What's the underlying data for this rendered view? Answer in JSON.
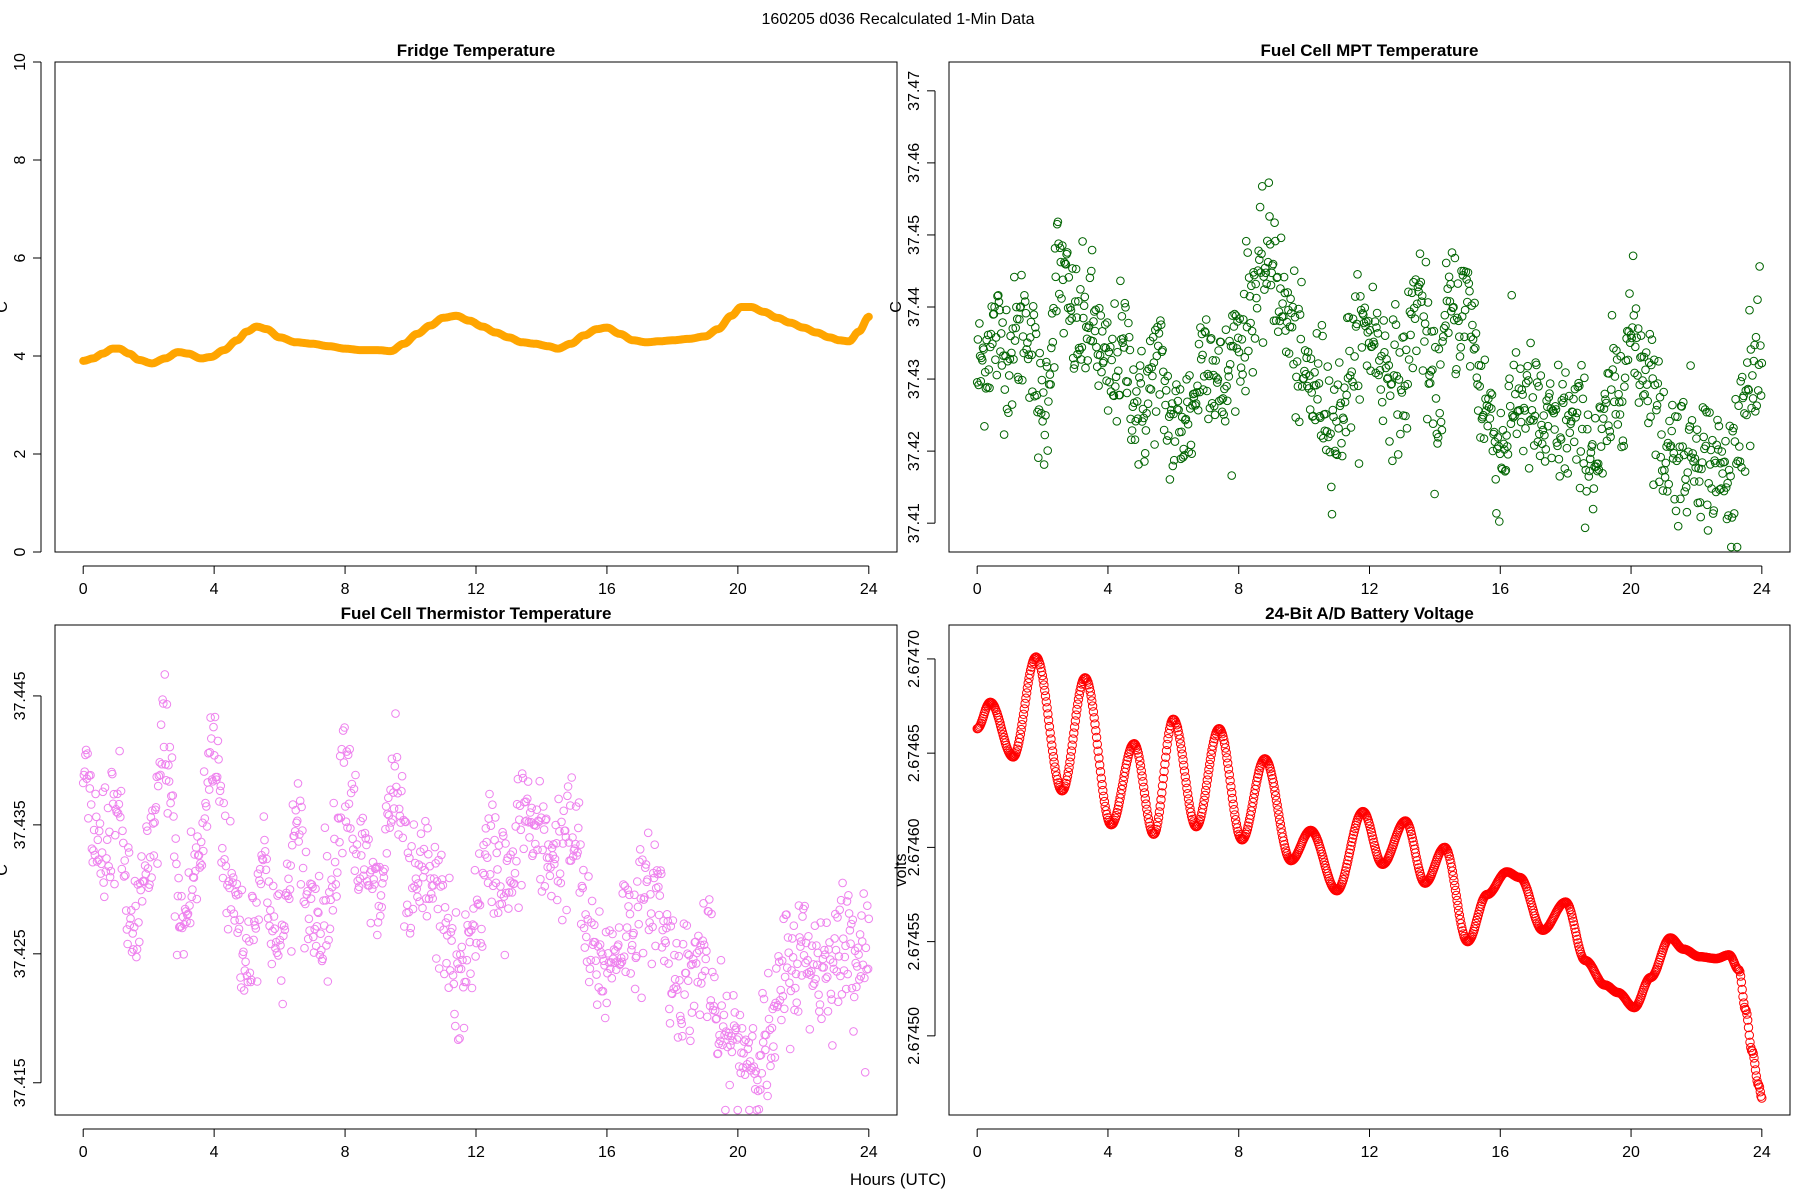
{
  "figure": {
    "suptitle": "160205   d036   Recalculated 1-Min Data",
    "xlabel": "Hours (UTC)"
  },
  "chart_data": [
    {
      "id": "fridge",
      "type": "line",
      "title": "Fridge Temperature",
      "xlabel": "Hours (UTC)",
      "ylabel": "C",
      "xlim": [
        0,
        24
      ],
      "ylim": [
        0,
        10
      ],
      "xticks": [
        0,
        4,
        8,
        12,
        16,
        20,
        24
      ],
      "yticks": [
        0,
        2,
        4,
        6,
        8,
        10
      ],
      "ytick_decimals": 0,
      "color": "#ffa500",
      "marker": "thick-line",
      "series": [
        {
          "name": "Fridge Temperature",
          "x": [
            0,
            0.3,
            0.6,
            0.9,
            1.1,
            1.4,
            1.7,
            2.1,
            2.5,
            2.9,
            3.2,
            3.6,
            3.9,
            4.3,
            4.7,
            5.0,
            5.3,
            5.6,
            6.0,
            6.5,
            7.0,
            7.5,
            8.0,
            8.5,
            9.0,
            9.4,
            9.8,
            10.2,
            10.6,
            11.0,
            11.4,
            11.8,
            12.2,
            12.6,
            13.0,
            13.4,
            13.8,
            14.2,
            14.5,
            14.9,
            15.3,
            15.7,
            16.0,
            16.4,
            16.8,
            17.2,
            17.6,
            18.0,
            18.5,
            19.0,
            19.4,
            19.8,
            20.1,
            20.4,
            20.8,
            21.2,
            21.6,
            22.0,
            22.4,
            22.8,
            23.1,
            23.4,
            23.7,
            24.0
          ],
          "y": [
            3.9,
            3.95,
            4.05,
            4.15,
            4.15,
            4.05,
            3.92,
            3.85,
            3.95,
            4.08,
            4.05,
            3.95,
            3.98,
            4.12,
            4.32,
            4.5,
            4.6,
            4.55,
            4.38,
            4.28,
            4.25,
            4.2,
            4.15,
            4.12,
            4.12,
            4.1,
            4.25,
            4.45,
            4.62,
            4.78,
            4.82,
            4.72,
            4.6,
            4.48,
            4.38,
            4.28,
            4.25,
            4.2,
            4.15,
            4.25,
            4.42,
            4.55,
            4.58,
            4.45,
            4.32,
            4.28,
            4.3,
            4.32,
            4.35,
            4.4,
            4.55,
            4.82,
            5.0,
            5.0,
            4.9,
            4.78,
            4.68,
            4.58,
            4.48,
            4.38,
            4.32,
            4.3,
            4.5,
            4.8
          ]
        }
      ]
    },
    {
      "id": "mpt",
      "type": "scatter",
      "title": "Fuel Cell MPT Temperature",
      "xlabel": "Hours (UTC)",
      "ylabel": "C",
      "xlim": [
        0,
        24
      ],
      "ylim": [
        37.406,
        37.474
      ],
      "xticks": [
        0,
        4,
        8,
        12,
        16,
        20,
        24
      ],
      "yticks": [
        37.41,
        37.42,
        37.43,
        37.44,
        37.45,
        37.46,
        37.47
      ],
      "ytick_decimals": 2,
      "color": "#006400",
      "marker": "open-circle",
      "series": [
        {
          "name": "Fuel Cell MPT Temperature",
          "x": [
            0,
            0.5,
            1.0,
            1.5,
            2.0,
            2.5,
            3.0,
            3.5,
            4.0,
            4.5,
            5.0,
            5.5,
            6.0,
            6.5,
            7.0,
            7.5,
            8.0,
            8.5,
            9.0,
            9.5,
            10.0,
            10.5,
            11.0,
            11.5,
            12.0,
            12.5,
            13.0,
            13.5,
            14.0,
            14.5,
            15.0,
            15.5,
            16.0,
            16.5,
            17.0,
            17.5,
            18.0,
            18.5,
            19.0,
            19.5,
            20.0,
            20.5,
            21.0,
            21.5,
            22.0,
            22.5,
            23.0,
            23.5,
            24.0
          ],
          "y": [
            37.431,
            37.436,
            37.434,
            37.438,
            37.425,
            37.445,
            37.437,
            37.438,
            37.43,
            37.434,
            37.425,
            37.432,
            37.423,
            37.425,
            37.435,
            37.428,
            37.436,
            37.442,
            37.447,
            37.438,
            37.43,
            37.428,
            37.424,
            37.433,
            37.437,
            37.432,
            37.429,
            37.442,
            37.426,
            37.44,
            37.44,
            37.427,
            37.42,
            37.428,
            37.425,
            37.422,
            37.424,
            37.422,
            37.419,
            37.428,
            37.436,
            37.432,
            37.421,
            37.42,
            37.421,
            37.418,
            37.416,
            37.428,
            37.431
          ],
          "spread": 0.0085
        }
      ]
    },
    {
      "id": "thermistor",
      "type": "scatter",
      "title": "Fuel Cell Thermistor Temperature",
      "xlabel": "Hours (UTC)",
      "ylabel": "C",
      "xlim": [
        0,
        24
      ],
      "ylim": [
        37.4125,
        37.4505
      ],
      "xticks": [
        0,
        4,
        8,
        12,
        16,
        20,
        24
      ],
      "yticks": [
        37.415,
        37.425,
        37.435,
        37.445
      ],
      "ytick_decimals": 3,
      "color": "#ee82ee",
      "marker": "open-circle",
      "series": [
        {
          "name": "Fuel Cell Thermistor Temperature",
          "x": [
            0,
            0.5,
            1.0,
            1.5,
            2.0,
            2.5,
            3.0,
            3.5,
            4.0,
            4.5,
            5.0,
            5.5,
            6.0,
            6.5,
            7.0,
            7.5,
            8.0,
            8.5,
            9.0,
            9.5,
            10.0,
            10.5,
            11.0,
            11.5,
            12.0,
            12.5,
            13.0,
            13.5,
            14.0,
            14.5,
            15.0,
            15.5,
            16.0,
            16.5,
            17.0,
            17.5,
            18.0,
            18.5,
            19.0,
            19.5,
            20.0,
            20.5,
            21.0,
            21.5,
            22.0,
            22.5,
            23.0,
            23.5,
            24.0
          ],
          "y": [
            37.438,
            37.433,
            37.436,
            37.427,
            37.431,
            37.442,
            37.427,
            37.432,
            37.441,
            37.43,
            37.425,
            37.432,
            37.425,
            37.434,
            37.428,
            37.429,
            37.44,
            37.432,
            37.429,
            37.438,
            37.429,
            37.431,
            37.428,
            37.422,
            37.428,
            37.433,
            37.43,
            37.436,
            37.433,
            37.433,
            37.434,
            37.425,
            37.424,
            37.427,
            37.428,
            37.43,
            37.424,
            37.423,
            37.425,
            37.418,
            37.418,
            37.417,
            37.418,
            37.424,
            37.425,
            37.424,
            37.425,
            37.426,
            37.425
          ],
          "spread": 0.0045
        }
      ]
    },
    {
      "id": "battery",
      "type": "scatter",
      "title": "24-Bit A/D Battery Voltage",
      "xlabel": "Hours (UTC)",
      "ylabel": "volts",
      "xlim": [
        0,
        24
      ],
      "ylim": [
        2.674458,
        2.674718
      ],
      "xticks": [
        0,
        4,
        8,
        12,
        16,
        20,
        24
      ],
      "yticks": [
        2.6745,
        2.67455,
        2.6746,
        2.67465,
        2.6747
      ],
      "ytick_decimals": 5,
      "color": "#ff0000",
      "marker": "open-circle",
      "series": [
        {
          "name": "24-Bit A/D Battery Voltage",
          "x": [
            0,
            0.4,
            1.1,
            1.8,
            2.6,
            3.3,
            4.1,
            4.8,
            5.4,
            6.0,
            6.7,
            7.4,
            8.1,
            8.8,
            9.6,
            10.2,
            11.0,
            11.8,
            12.4,
            13.1,
            13.7,
            14.3,
            15.0,
            15.6,
            16.2,
            16.6,
            17.3,
            18.0,
            18.6,
            19.2,
            19.6,
            20.1,
            20.6,
            21.2,
            21.6,
            22.1,
            22.6,
            23.0,
            23.3,
            23.5,
            23.7,
            23.9,
            24.0
          ],
          "y": [
            2.674663,
            2.674677,
            2.674648,
            2.674701,
            2.67463,
            2.67469,
            2.674612,
            2.674655,
            2.674607,
            2.674668,
            2.674611,
            2.674663,
            2.674604,
            2.674647,
            2.674593,
            2.674609,
            2.674577,
            2.674619,
            2.674591,
            2.674614,
            2.674581,
            2.6746,
            2.67455,
            2.674575,
            2.674587,
            2.674584,
            2.674556,
            2.674571,
            2.67454,
            2.674527,
            2.674523,
            2.674515,
            2.674531,
            2.674552,
            2.674546,
            2.674542,
            2.674541,
            2.674543,
            2.674535,
            2.674514,
            2.674492,
            2.674474,
            2.674467
          ]
        }
      ]
    }
  ]
}
